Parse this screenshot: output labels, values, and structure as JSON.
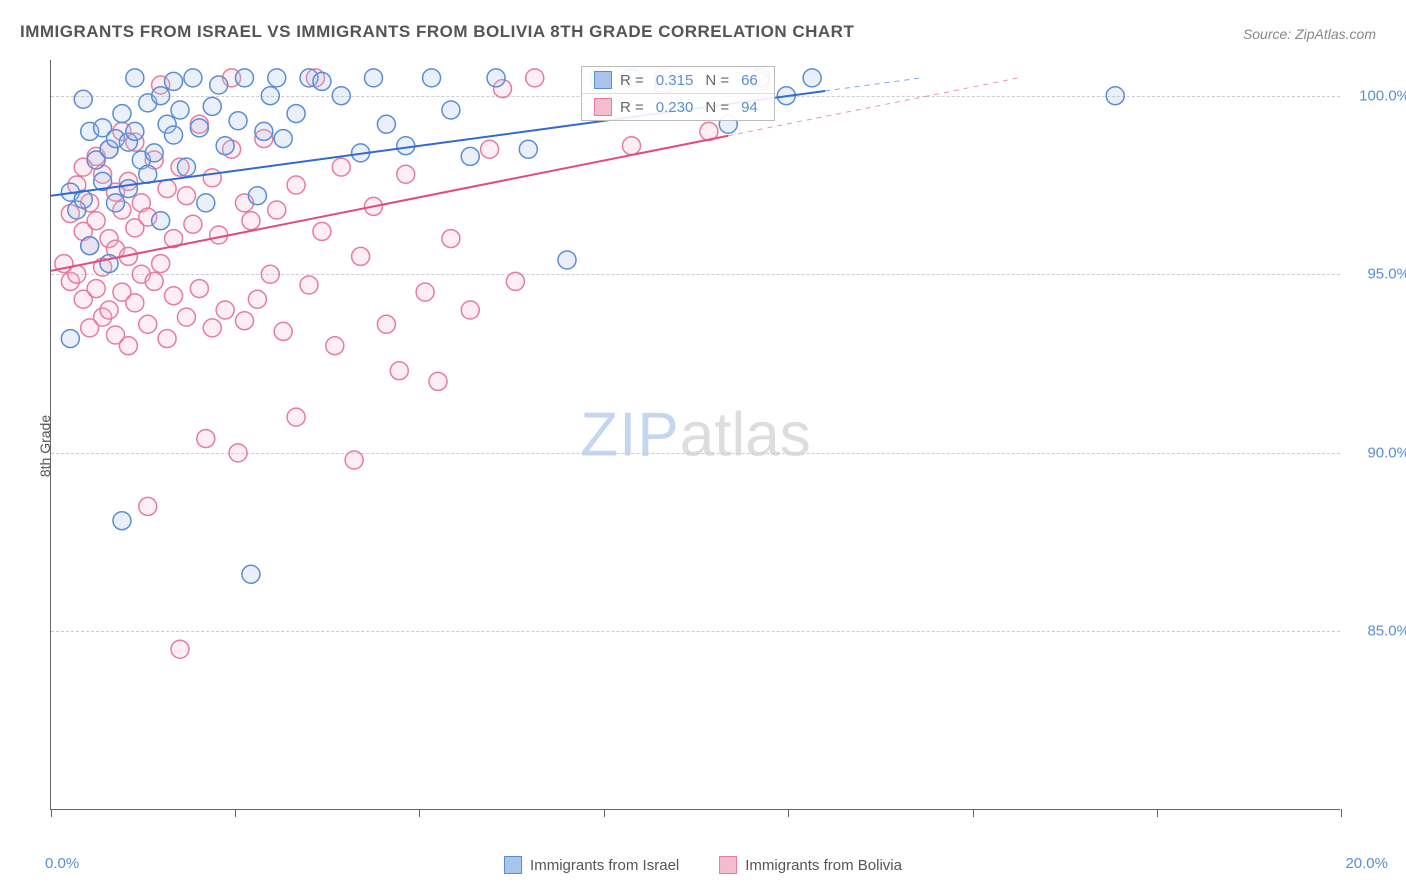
{
  "title": "IMMIGRANTS FROM ISRAEL VS IMMIGRANTS FROM BOLIVIA 8TH GRADE CORRELATION CHART",
  "source": "Source: ZipAtlas.com",
  "watermark_a": "ZIP",
  "watermark_b": "atlas",
  "y_axis_title": "8th Grade",
  "x_start": "0.0%",
  "x_end": "20.0%",
  "chart": {
    "type": "scatter",
    "xlim": [
      0,
      20
    ],
    "ylim": [
      80,
      101
    ],
    "y_ticks": [
      85.0,
      90.0,
      95.0,
      100.0
    ],
    "y_tick_labels": [
      "85.0%",
      "90.0%",
      "95.0%",
      "100.0%"
    ],
    "x_tick_positions": [
      0,
      2.86,
      5.71,
      8.57,
      11.43,
      14.29,
      17.14,
      20
    ],
    "grid_color": "#cccccc",
    "background_color": "#ffffff",
    "axis_color": "#666666",
    "marker_radius": 9,
    "marker_stroke_width": 1.5,
    "marker_fill_opacity": 0.25,
    "line_width": 2,
    "series": [
      {
        "name": "Immigrants from Israel",
        "color_stroke": "#5b8dd6",
        "color_fill": "#a8c4ea",
        "line_color": "#2e6bd4",
        "R": "0.315",
        "N": "66",
        "trend": {
          "x1": 0,
          "y1": 97.2,
          "x2": 13.5,
          "y2": 100.5,
          "dash_after_x": 12.0
        },
        "points": [
          [
            0.3,
            97.3
          ],
          [
            0.3,
            93.2
          ],
          [
            0.4,
            96.8
          ],
          [
            0.5,
            97.1
          ],
          [
            0.5,
            99.9
          ],
          [
            0.6,
            95.8
          ],
          [
            0.6,
            99.0
          ],
          [
            0.7,
            98.2
          ],
          [
            0.8,
            97.6
          ],
          [
            0.8,
            99.1
          ],
          [
            0.9,
            98.5
          ],
          [
            0.9,
            95.3
          ],
          [
            1.0,
            97.0
          ],
          [
            1.0,
            98.8
          ],
          [
            1.1,
            88.1
          ],
          [
            1.1,
            99.5
          ],
          [
            1.2,
            98.7
          ],
          [
            1.2,
            97.4
          ],
          [
            1.3,
            99.0
          ],
          [
            1.3,
            100.5
          ],
          [
            1.4,
            98.2
          ],
          [
            1.5,
            99.8
          ],
          [
            1.5,
            97.8
          ],
          [
            1.6,
            98.4
          ],
          [
            1.7,
            100.0
          ],
          [
            1.7,
            96.5
          ],
          [
            1.8,
            99.2
          ],
          [
            1.9,
            98.9
          ],
          [
            1.9,
            100.4
          ],
          [
            2.0,
            99.6
          ],
          [
            2.1,
            98.0
          ],
          [
            2.2,
            100.5
          ],
          [
            2.3,
            99.1
          ],
          [
            2.4,
            97.0
          ],
          [
            2.5,
            99.7
          ],
          [
            2.6,
            100.3
          ],
          [
            2.7,
            98.6
          ],
          [
            2.9,
            99.3
          ],
          [
            3.0,
            100.5
          ],
          [
            3.1,
            86.6
          ],
          [
            3.2,
            97.2
          ],
          [
            3.3,
            99.0
          ],
          [
            3.4,
            100.0
          ],
          [
            3.5,
            100.5
          ],
          [
            3.6,
            98.8
          ],
          [
            3.8,
            99.5
          ],
          [
            4.0,
            100.5
          ],
          [
            4.2,
            100.4
          ],
          [
            4.5,
            100.0
          ],
          [
            4.8,
            98.4
          ],
          [
            5.0,
            100.5
          ],
          [
            5.2,
            99.2
          ],
          [
            5.5,
            98.6
          ],
          [
            5.9,
            100.5
          ],
          [
            6.2,
            99.6
          ],
          [
            6.5,
            98.3
          ],
          [
            6.9,
            100.5
          ],
          [
            7.4,
            98.5
          ],
          [
            8.0,
            95.4
          ],
          [
            9.0,
            100.5
          ],
          [
            9.5,
            100.3
          ],
          [
            10.5,
            99.2
          ],
          [
            11.0,
            100.5
          ],
          [
            11.4,
            100.0
          ],
          [
            11.8,
            100.5
          ],
          [
            16.5,
            100.0
          ]
        ]
      },
      {
        "name": "Immigrants from Bolivia",
        "color_stroke": "#e87ba0",
        "color_fill": "#f5bcd0",
        "line_color": "#e14b7e",
        "R": "0.230",
        "N": "94",
        "trend": {
          "x1": 0,
          "y1": 95.1,
          "x2": 15.0,
          "y2": 100.5,
          "dash_after_x": 10.5
        },
        "points": [
          [
            0.2,
            95.3
          ],
          [
            0.3,
            94.8
          ],
          [
            0.3,
            96.7
          ],
          [
            0.4,
            95.0
          ],
          [
            0.4,
            97.5
          ],
          [
            0.5,
            94.3
          ],
          [
            0.5,
            98.0
          ],
          [
            0.5,
            96.2
          ],
          [
            0.6,
            95.8
          ],
          [
            0.6,
            97.0
          ],
          [
            0.6,
            93.5
          ],
          [
            0.7,
            96.5
          ],
          [
            0.7,
            94.6
          ],
          [
            0.7,
            98.3
          ],
          [
            0.8,
            95.2
          ],
          [
            0.8,
            97.8
          ],
          [
            0.8,
            93.8
          ],
          [
            0.9,
            96.0
          ],
          [
            0.9,
            94.0
          ],
          [
            0.9,
            98.5
          ],
          [
            1.0,
            95.7
          ],
          [
            1.0,
            97.3
          ],
          [
            1.0,
            93.3
          ],
          [
            1.1,
            96.8
          ],
          [
            1.1,
            94.5
          ],
          [
            1.1,
            99.0
          ],
          [
            1.2,
            95.5
          ],
          [
            1.2,
            97.6
          ],
          [
            1.2,
            93.0
          ],
          [
            1.3,
            96.3
          ],
          [
            1.3,
            94.2
          ],
          [
            1.3,
            98.7
          ],
          [
            1.4,
            95.0
          ],
          [
            1.4,
            97.0
          ],
          [
            1.5,
            93.6
          ],
          [
            1.5,
            96.6
          ],
          [
            1.5,
            88.5
          ],
          [
            1.6,
            94.8
          ],
          [
            1.6,
            98.2
          ],
          [
            1.7,
            95.3
          ],
          [
            1.7,
            100.3
          ],
          [
            1.8,
            97.4
          ],
          [
            1.8,
            93.2
          ],
          [
            1.9,
            96.0
          ],
          [
            1.9,
            94.4
          ],
          [
            2.0,
            98.0
          ],
          [
            2.0,
            84.5
          ],
          [
            2.1,
            97.2
          ],
          [
            2.1,
            93.8
          ],
          [
            2.2,
            96.4
          ],
          [
            2.3,
            94.6
          ],
          [
            2.3,
            99.2
          ],
          [
            2.4,
            90.4
          ],
          [
            2.5,
            97.7
          ],
          [
            2.5,
            93.5
          ],
          [
            2.6,
            96.1
          ],
          [
            2.7,
            94.0
          ],
          [
            2.8,
            98.5
          ],
          [
            2.8,
            100.5
          ],
          [
            2.9,
            90.0
          ],
          [
            3.0,
            97.0
          ],
          [
            3.0,
            93.7
          ],
          [
            3.1,
            96.5
          ],
          [
            3.2,
            94.3
          ],
          [
            3.3,
            98.8
          ],
          [
            3.4,
            95.0
          ],
          [
            3.5,
            96.8
          ],
          [
            3.6,
            93.4
          ],
          [
            3.8,
            97.5
          ],
          [
            3.8,
            91.0
          ],
          [
            4.0,
            94.7
          ],
          [
            4.1,
            100.5
          ],
          [
            4.2,
            96.2
          ],
          [
            4.4,
            93.0
          ],
          [
            4.5,
            98.0
          ],
          [
            4.7,
            89.8
          ],
          [
            4.8,
            95.5
          ],
          [
            5.0,
            96.9
          ],
          [
            5.2,
            93.6
          ],
          [
            5.4,
            92.3
          ],
          [
            5.5,
            97.8
          ],
          [
            5.8,
            94.5
          ],
          [
            6.0,
            92.0
          ],
          [
            6.2,
            96.0
          ],
          [
            6.5,
            94.0
          ],
          [
            6.8,
            98.5
          ],
          [
            7.0,
            100.2
          ],
          [
            7.2,
            94.8
          ],
          [
            7.5,
            100.5
          ],
          [
            8.5,
            100.5
          ],
          [
            9.0,
            98.6
          ],
          [
            9.5,
            100.5
          ],
          [
            10.2,
            99.0
          ],
          [
            11.0,
            100.4
          ]
        ]
      }
    ]
  },
  "legend": {
    "r_label": "R =",
    "n_label": "N ="
  },
  "bottom_legend": [
    "Immigrants from Israel",
    "Immigrants from Bolivia"
  ]
}
